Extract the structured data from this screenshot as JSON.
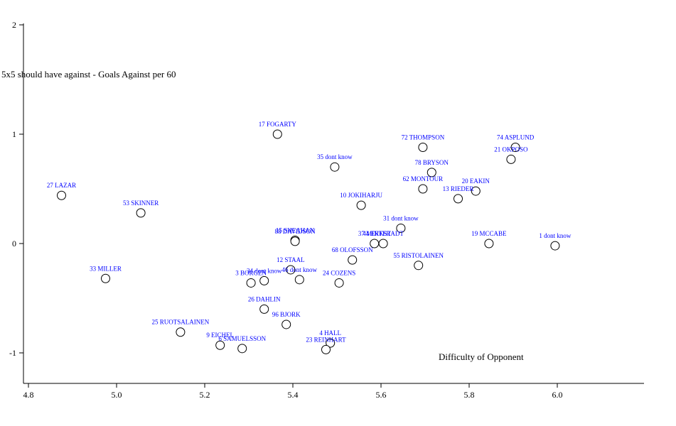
{
  "chart_data": {
    "type": "scatter",
    "xlabel": "Difficulty of Opponent",
    "ylabel": "5x5 should have against - Goals Against per 60",
    "xlim": [
      4.8,
      6.2
    ],
    "ylim": [
      -1.25,
      2.0
    ],
    "xticks": [
      "4.8",
      "5.0",
      "5.2",
      "5.4",
      "5.6",
      "5.8",
      "6.0"
    ],
    "yticks": [
      "-1",
      "0",
      "1",
      "2"
    ],
    "points": [
      {
        "label": "17 FOGARTY",
        "x": 5.365,
        "y": 1.0
      },
      {
        "label": "72 THOMPSON",
        "x": 5.695,
        "y": 0.88
      },
      {
        "label": "74 ASPLUND",
        "x": 5.905,
        "y": 0.88
      },
      {
        "label": "21 OKPOSO",
        "x": 5.895,
        "y": 0.77
      },
      {
        "label": "35 dont know",
        "x": 5.495,
        "y": 0.7
      },
      {
        "label": "78 BRYSON",
        "x": 5.715,
        "y": 0.65
      },
      {
        "label": "62 MONTOUR",
        "x": 5.695,
        "y": 0.5
      },
      {
        "label": "20 EAKIN",
        "x": 5.815,
        "y": 0.48
      },
      {
        "label": "13 RIEDER",
        "x": 5.775,
        "y": 0.41
      },
      {
        "label": "27 LAZAR",
        "x": 4.875,
        "y": 0.44
      },
      {
        "label": "53 SKINNER",
        "x": 5.055,
        "y": 0.28
      },
      {
        "label": "10 JOKIHARJU",
        "x": 5.555,
        "y": 0.35
      },
      {
        "label": "31 dont know",
        "x": 5.645,
        "y": 0.14
      },
      {
        "label": "15 SHEAHAN",
        "x": 5.405,
        "y": 0.03
      },
      {
        "label": "88 DAVIDSON",
        "x": 5.405,
        "y": 0.02
      },
      {
        "label": "37 MINTER",
        "x": 5.585,
        "y": 0.0
      },
      {
        "label": "44 ERKSTADT",
        "x": 5.605,
        "y": 0.0
      },
      {
        "label": "19 MCCABE",
        "x": 5.845,
        "y": 0.0
      },
      {
        "label": "1 dont know",
        "x": 5.995,
        "y": -0.02
      },
      {
        "label": "68 OLOFSSON",
        "x": 5.535,
        "y": -0.15
      },
      {
        "label": "55 RISTOLAINEN",
        "x": 5.685,
        "y": -0.2
      },
      {
        "label": "12 STAAL",
        "x": 5.395,
        "y": -0.24
      },
      {
        "label": "33 MILLER",
        "x": 4.975,
        "y": -0.32
      },
      {
        "label": "3 BORGEN",
        "x": 5.305,
        "y": -0.36
      },
      {
        "label": "34 dont know",
        "x": 5.335,
        "y": -0.34
      },
      {
        "label": "46 dont know",
        "x": 5.415,
        "y": -0.33
      },
      {
        "label": "24 COZENS",
        "x": 5.505,
        "y": -0.36
      },
      {
        "label": "26 DAHLIN",
        "x": 5.335,
        "y": -0.6
      },
      {
        "label": "96 BJORK",
        "x": 5.385,
        "y": -0.74
      },
      {
        "label": "25 RUOTSALAINEN",
        "x": 5.145,
        "y": -0.81
      },
      {
        "label": "9 EICHEL",
        "x": 5.235,
        "y": -0.93
      },
      {
        "label": "6 SAMUELSSON",
        "x": 5.285,
        "y": -0.96
      },
      {
        "label": "4 HALL",
        "x": 5.485,
        "y": -0.91
      },
      {
        "label": "23 REINHART",
        "x": 5.475,
        "y": -0.97
      }
    ]
  }
}
